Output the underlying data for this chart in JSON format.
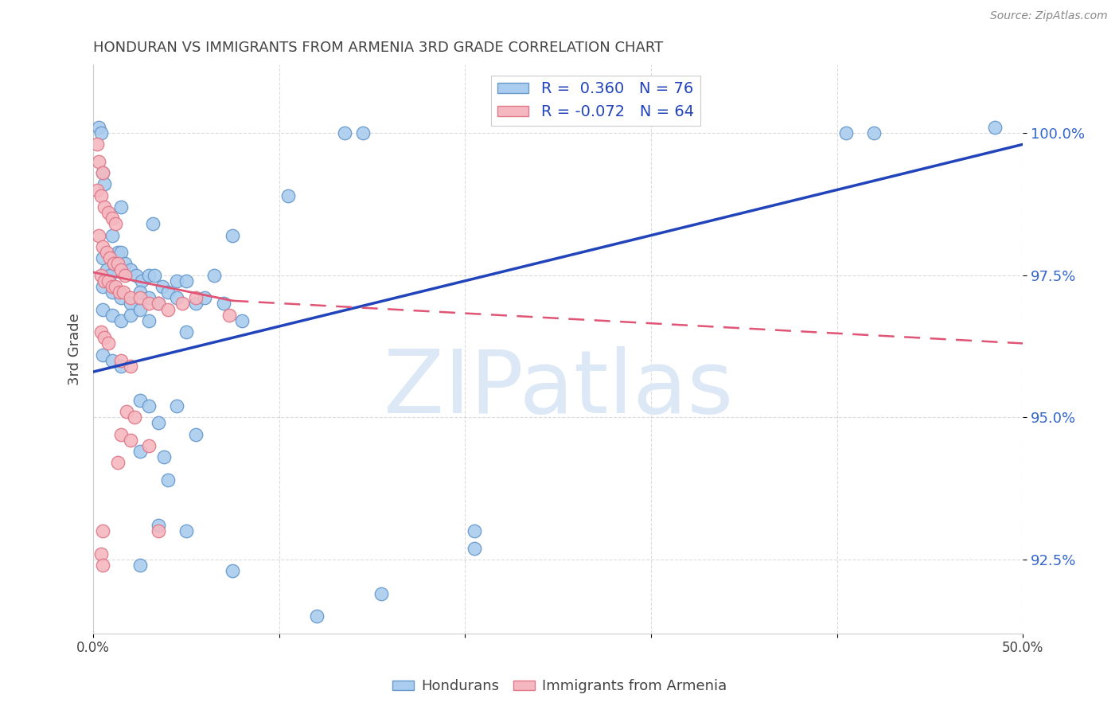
{
  "title": "HONDURAN VS IMMIGRANTS FROM ARMENIA 3RD GRADE CORRELATION CHART",
  "source": "Source: ZipAtlas.com",
  "ylabel": "3rd Grade",
  "xmin": 0.0,
  "xmax": 50.0,
  "ymin": 91.2,
  "ymax": 101.2,
  "yticks": [
    92.5,
    95.0,
    97.5,
    100.0
  ],
  "ytick_labels": [
    "92.5%",
    "95.0%",
    "97.5%",
    "100.0%"
  ],
  "legend_blue_label": "R =  0.360   N = 76",
  "legend_pink_label": "R = -0.072   N = 64",
  "watermark": "ZIPatlas",
  "blue_scatter": [
    [
      0.3,
      100.1
    ],
    [
      0.4,
      100.0
    ],
    [
      0.5,
      99.3
    ],
    [
      0.6,
      99.1
    ],
    [
      13.5,
      100.0
    ],
    [
      14.5,
      100.0
    ],
    [
      40.5,
      100.0
    ],
    [
      42.0,
      100.0
    ],
    [
      48.5,
      100.1
    ],
    [
      1.5,
      98.7
    ],
    [
      3.2,
      98.4
    ],
    [
      7.5,
      98.2
    ],
    [
      10.5,
      98.9
    ],
    [
      1.0,
      98.2
    ],
    [
      0.5,
      97.8
    ],
    [
      0.7,
      97.6
    ],
    [
      0.9,
      97.5
    ],
    [
      1.1,
      97.7
    ],
    [
      1.3,
      97.9
    ],
    [
      1.5,
      97.9
    ],
    [
      1.7,
      97.7
    ],
    [
      2.0,
      97.6
    ],
    [
      2.3,
      97.5
    ],
    [
      2.6,
      97.4
    ],
    [
      3.0,
      97.5
    ],
    [
      3.3,
      97.5
    ],
    [
      3.7,
      97.3
    ],
    [
      4.5,
      97.4
    ],
    [
      5.0,
      97.4
    ],
    [
      6.5,
      97.5
    ],
    [
      0.5,
      97.3
    ],
    [
      1.0,
      97.2
    ],
    [
      1.5,
      97.1
    ],
    [
      2.0,
      97.0
    ],
    [
      2.5,
      97.2
    ],
    [
      3.0,
      97.1
    ],
    [
      3.5,
      97.0
    ],
    [
      4.0,
      97.2
    ],
    [
      4.5,
      97.1
    ],
    [
      5.5,
      97.0
    ],
    [
      6.0,
      97.1
    ],
    [
      7.0,
      97.0
    ],
    [
      0.5,
      96.9
    ],
    [
      1.0,
      96.8
    ],
    [
      1.5,
      96.7
    ],
    [
      2.0,
      96.8
    ],
    [
      2.5,
      96.9
    ],
    [
      3.0,
      96.7
    ],
    [
      5.0,
      96.5
    ],
    [
      8.0,
      96.7
    ],
    [
      0.5,
      96.1
    ],
    [
      1.0,
      96.0
    ],
    [
      1.5,
      95.9
    ],
    [
      2.5,
      95.3
    ],
    [
      3.0,
      95.2
    ],
    [
      4.5,
      95.2
    ],
    [
      3.5,
      94.9
    ],
    [
      5.5,
      94.7
    ],
    [
      2.5,
      94.4
    ],
    [
      3.8,
      94.3
    ],
    [
      4.0,
      93.9
    ],
    [
      3.5,
      93.1
    ],
    [
      5.0,
      93.0
    ],
    [
      20.5,
      93.0
    ],
    [
      2.5,
      92.4
    ],
    [
      7.5,
      92.3
    ],
    [
      15.5,
      91.9
    ],
    [
      20.5,
      92.7
    ],
    [
      12.0,
      91.5
    ]
  ],
  "pink_scatter": [
    [
      0.2,
      99.8
    ],
    [
      0.3,
      99.5
    ],
    [
      0.5,
      99.3
    ],
    [
      0.2,
      99.0
    ],
    [
      0.4,
      98.9
    ],
    [
      0.6,
      98.7
    ],
    [
      0.8,
      98.6
    ],
    [
      1.0,
      98.5
    ],
    [
      1.2,
      98.4
    ],
    [
      0.3,
      98.2
    ],
    [
      0.5,
      98.0
    ],
    [
      0.7,
      97.9
    ],
    [
      0.9,
      97.8
    ],
    [
      1.1,
      97.7
    ],
    [
      1.3,
      97.7
    ],
    [
      1.5,
      97.6
    ],
    [
      1.7,
      97.5
    ],
    [
      0.4,
      97.5
    ],
    [
      0.6,
      97.4
    ],
    [
      0.8,
      97.4
    ],
    [
      1.0,
      97.3
    ],
    [
      1.2,
      97.3
    ],
    [
      1.4,
      97.2
    ],
    [
      1.6,
      97.2
    ],
    [
      2.0,
      97.1
    ],
    [
      2.5,
      97.1
    ],
    [
      3.0,
      97.0
    ],
    [
      3.5,
      97.0
    ],
    [
      4.0,
      96.9
    ],
    [
      4.8,
      97.0
    ],
    [
      5.5,
      97.1
    ],
    [
      0.4,
      96.5
    ],
    [
      0.6,
      96.4
    ],
    [
      0.8,
      96.3
    ],
    [
      1.5,
      96.0
    ],
    [
      2.0,
      95.9
    ],
    [
      1.8,
      95.1
    ],
    [
      2.2,
      95.0
    ],
    [
      1.5,
      94.7
    ],
    [
      2.0,
      94.6
    ],
    [
      3.0,
      94.5
    ],
    [
      1.3,
      94.2
    ],
    [
      0.5,
      93.0
    ],
    [
      3.5,
      93.0
    ],
    [
      0.4,
      92.6
    ],
    [
      7.3,
      96.8
    ],
    [
      0.5,
      92.4
    ]
  ],
  "blue_line_x0": 0.0,
  "blue_line_x1": 50.0,
  "blue_line_y0": 95.8,
  "blue_line_y1": 99.8,
  "pink_solid_x0": 0.0,
  "pink_solid_x1": 7.5,
  "pink_solid_y0": 97.55,
  "pink_solid_y1": 97.05,
  "pink_dash_x0": 7.5,
  "pink_dash_x1": 50.0,
  "pink_dash_y0": 97.05,
  "pink_dash_y1": 96.3,
  "grid_color": "#cccccc",
  "title_color": "#444444",
  "watermark_color": "#dce8f5",
  "background_color": "#ffffff"
}
